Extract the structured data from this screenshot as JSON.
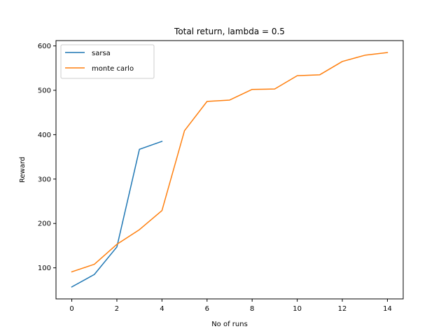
{
  "chart_data": {
    "type": "line",
    "title": "Total return, lambda = 0.5",
    "xlabel": "No of runs",
    "ylabel": "Reward",
    "xlim": [
      -0.7,
      14.7
    ],
    "ylim": [
      30,
      612
    ],
    "xticks": [
      0,
      2,
      4,
      6,
      8,
      10,
      12,
      14
    ],
    "yticks": [
      100,
      200,
      300,
      400,
      500,
      600
    ],
    "grid": false,
    "legend": "top-left",
    "series": [
      {
        "name": "sarsa",
        "color": "#1f77b4",
        "x": [
          0,
          1,
          2,
          3,
          4
        ],
        "y": [
          57,
          85,
          147,
          367,
          385
        ]
      },
      {
        "name": "monte carlo",
        "color": "#ff7f0e",
        "x": [
          0,
          1,
          2,
          3,
          4,
          5,
          6,
          7,
          8,
          9,
          10,
          11,
          12,
          13,
          14
        ],
        "y": [
          91,
          108,
          153,
          186,
          229,
          409,
          475,
          478,
          502,
          503,
          533,
          535,
          565,
          579,
          585
        ]
      }
    ]
  }
}
